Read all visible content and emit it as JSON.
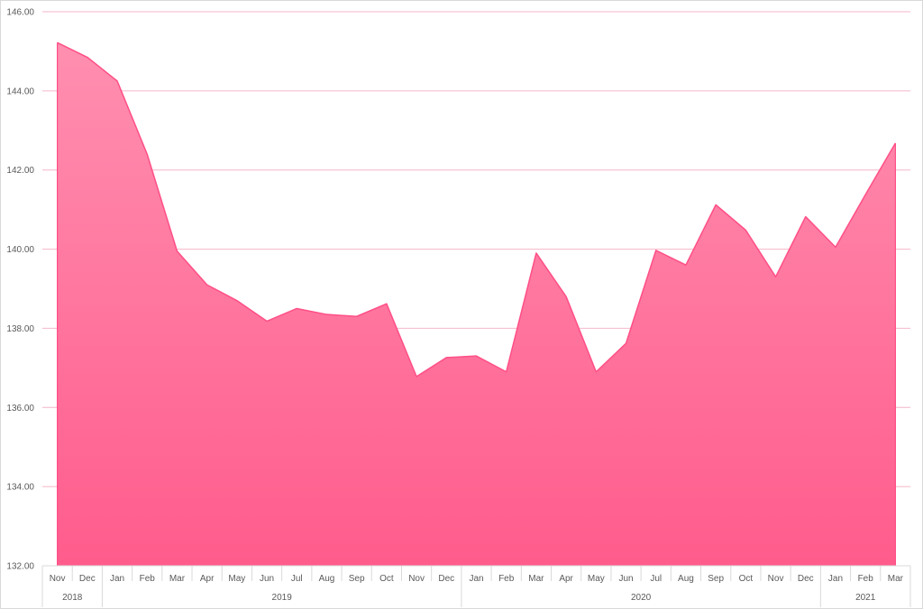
{
  "chart_data": {
    "type": "area",
    "title": "",
    "xlabel": "",
    "ylabel": "",
    "ylim": [
      132,
      146
    ],
    "y_ticks": [
      "132.00",
      "134.00",
      "136.00",
      "138.00",
      "140.00",
      "142.00",
      "144.00",
      "146.00"
    ],
    "grid": true,
    "legend": "none",
    "categories": [
      "Nov",
      "Dec",
      "Jan",
      "Feb",
      "Mar",
      "Apr",
      "May",
      "Jun",
      "Jul",
      "Aug",
      "Sep",
      "Oct",
      "Nov",
      "Dec",
      "Jan",
      "Feb",
      "Mar",
      "Apr",
      "May",
      "Jun",
      "Jul",
      "Aug",
      "Sep",
      "Oct",
      "Nov",
      "Dec",
      "Jan",
      "Feb",
      "Mar"
    ],
    "year_groups": [
      {
        "label": "2018",
        "count": 2
      },
      {
        "label": "2019",
        "count": 12
      },
      {
        "label": "2020",
        "count": 12
      },
      {
        "label": "2021",
        "count": 3
      }
    ],
    "series": [
      {
        "values": [
          145.22,
          144.85,
          144.25,
          142.4,
          139.95,
          139.1,
          138.7,
          138.18,
          138.5,
          138.35,
          138.3,
          138.62,
          136.78,
          137.26,
          137.3,
          136.9,
          139.9,
          138.8,
          136.9,
          137.62,
          139.97,
          139.6,
          141.12,
          140.48,
          139.3,
          140.82,
          140.05,
          141.38,
          142.68
        ],
        "color": "#ff4f87",
        "fill_top": "#ff8fb0",
        "fill_bottom": "#ff5c8c"
      }
    ],
    "gridline_color": "#f4b6c8",
    "axis_color": "#d9d9d9"
  }
}
